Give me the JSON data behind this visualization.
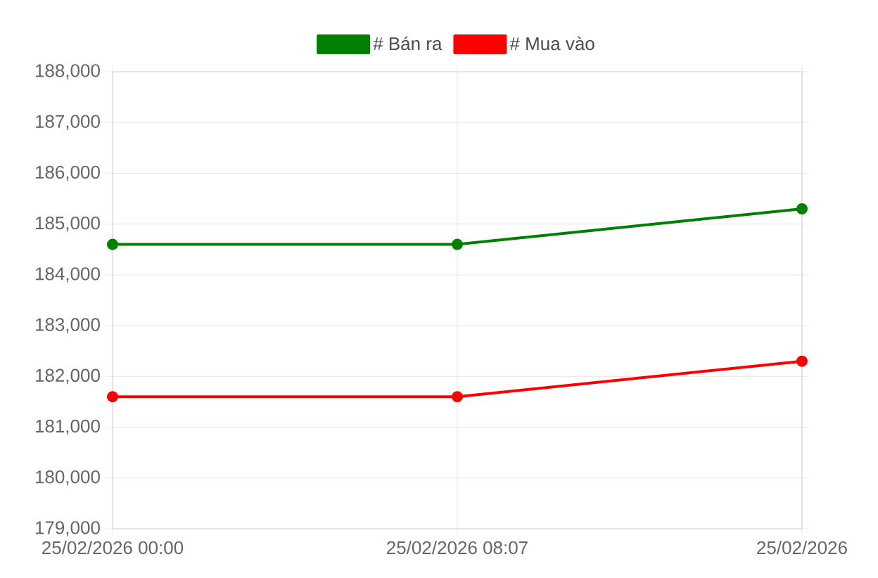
{
  "chart_data": {
    "type": "line",
    "categories": [
      "25/02/2026 00:00",
      "25/02/2026 08:07",
      "25/02/2026"
    ],
    "series": [
      {
        "name": "# Bán ra",
        "color": "#008000",
        "values": [
          184600,
          184600,
          185300
        ]
      },
      {
        "name": "# Mua vào",
        "color": "#ff0000",
        "values": [
          181600,
          181600,
          182300
        ]
      }
    ],
    "ylim": [
      179000,
      188000
    ],
    "yticks": [
      {
        "value": 179000,
        "label": "179,000"
      },
      {
        "value": 180000,
        "label": "180,000"
      },
      {
        "value": 181000,
        "label": "181,000"
      },
      {
        "value": 182000,
        "label": "182,000"
      },
      {
        "value": 183000,
        "label": "183,000"
      },
      {
        "value": 184000,
        "label": "184,000"
      },
      {
        "value": 185000,
        "label": "185,000"
      },
      {
        "value": 186000,
        "label": "186,000"
      },
      {
        "value": 187000,
        "label": "187,000"
      },
      {
        "value": 188000,
        "label": "188,000"
      }
    ],
    "grid": true,
    "legend": "top",
    "marker": "circle",
    "line_style": "solid"
  }
}
